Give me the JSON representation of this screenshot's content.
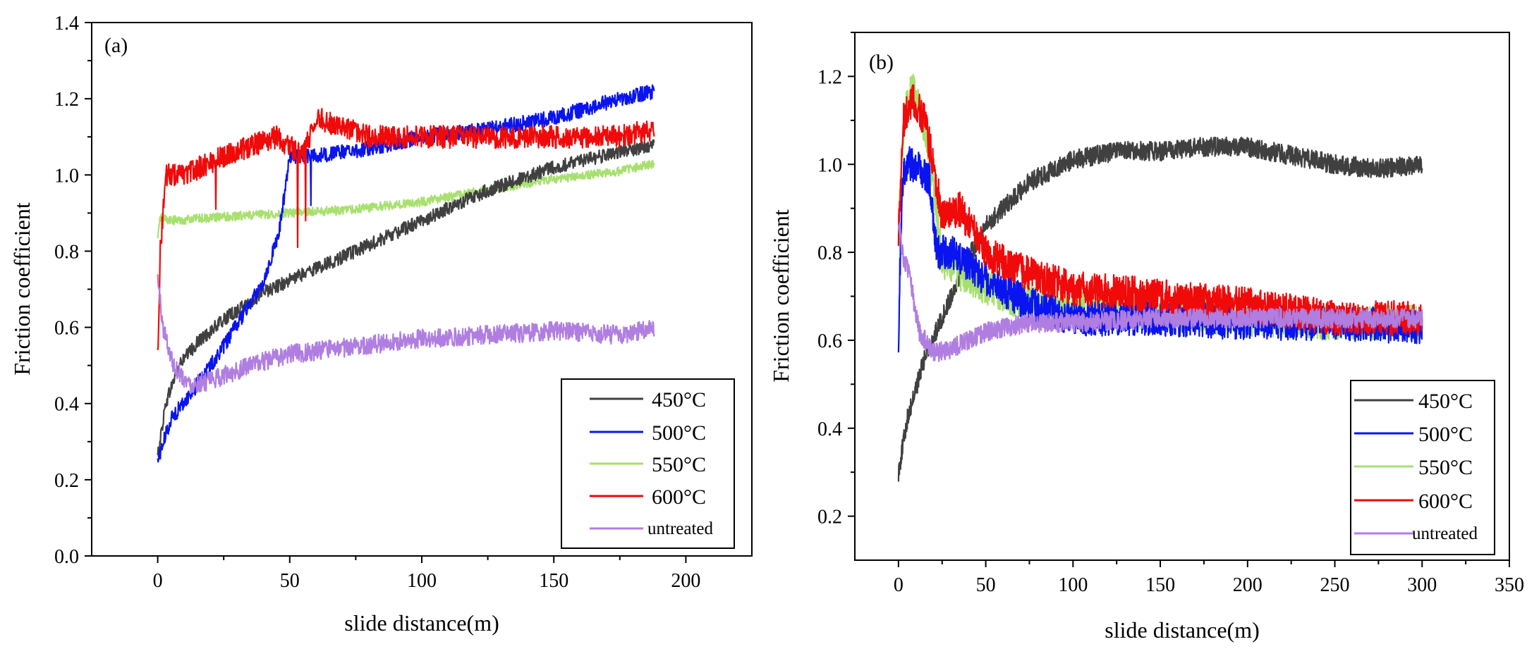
{
  "colors": {
    "450": "#404040",
    "500": "#0a14f0",
    "550": "#a8e070",
    "600": "#f00a0a",
    "untreated": "#b07ee0"
  },
  "chart_data": [
    {
      "type": "line",
      "panel_label": "(a)",
      "xlabel": "slide distance(m)",
      "ylabel": "Friction coefficient",
      "xlim": [
        -25,
        225
      ],
      "ylim": [
        0,
        1.4
      ],
      "xticks": [
        0,
        50,
        100,
        150,
        200
      ],
      "xtick_labels": [
        "0",
        "50",
        "100",
        "150",
        "200"
      ],
      "yticks": [
        0,
        0.2,
        0.4,
        0.6,
        0.8,
        1.0,
        1.2,
        1.4
      ],
      "ytick_labels": [
        "0.0",
        "0.2",
        "0.4",
        "0.6",
        "0.8",
        "1.0",
        "1.2",
        "1.4"
      ],
      "legend_position": "bottom-right",
      "series": [
        {
          "name": "450°C",
          "color_key": "450",
          "noise": 0.018,
          "x": [
            0,
            3,
            8,
            15,
            25,
            40,
            55,
            75,
            100,
            125,
            150,
            175,
            188
          ],
          "values": [
            0.26,
            0.4,
            0.5,
            0.56,
            0.62,
            0.69,
            0.74,
            0.8,
            0.88,
            0.96,
            1.02,
            1.06,
            1.08
          ]
        },
        {
          "name": "500°C",
          "color_key": "500",
          "noise": 0.02,
          "x": [
            0,
            5,
            12,
            25,
            40,
            46,
            48,
            50,
            60,
            80,
            100,
            125,
            150,
            175,
            188
          ],
          "values": [
            0.25,
            0.36,
            0.42,
            0.55,
            0.72,
            0.85,
            0.95,
            1.05,
            1.05,
            1.07,
            1.1,
            1.12,
            1.15,
            1.2,
            1.22
          ],
          "drops": [
            {
              "x": 58,
              "value": 0.92
            },
            {
              "x": 53,
              "value": 1.0
            }
          ]
        },
        {
          "name": "550°C",
          "color_key": "550",
          "noise": 0.012,
          "x": [
            0,
            1,
            5,
            25,
            50,
            75,
            100,
            125,
            150,
            175,
            188
          ],
          "values": [
            0.83,
            0.89,
            0.88,
            0.89,
            0.9,
            0.91,
            0.93,
            0.96,
            0.99,
            1.01,
            1.03
          ]
        },
        {
          "name": "600°C",
          "color_key": "600",
          "noise": 0.03,
          "x": [
            0,
            1,
            3,
            10,
            25,
            45,
            55,
            60,
            80,
            100,
            125,
            150,
            175,
            188
          ],
          "values": [
            0.53,
            0.8,
            1.0,
            1.0,
            1.05,
            1.1,
            1.05,
            1.15,
            1.1,
            1.1,
            1.1,
            1.1,
            1.1,
            1.12
          ],
          "drops": [
            {
              "x": 22,
              "value": 0.91
            },
            {
              "x": 53,
              "value": 0.81
            },
            {
              "x": 56,
              "value": 0.88
            }
          ]
        },
        {
          "name": "untreated",
          "color_key": "untreated",
          "noise": 0.025,
          "x": [
            0,
            2,
            6,
            12,
            20,
            35,
            50,
            75,
            100,
            125,
            150,
            175,
            188
          ],
          "values": [
            0.73,
            0.6,
            0.5,
            0.45,
            0.46,
            0.5,
            0.53,
            0.55,
            0.57,
            0.58,
            0.59,
            0.58,
            0.6
          ]
        }
      ]
    },
    {
      "type": "line",
      "panel_label": "(b)",
      "xlabel": "slide distance(m)",
      "ylabel": "Friction coefficient",
      "xlim": [
        -25,
        350
      ],
      "ylim": [
        0.1,
        1.3
      ],
      "xticks": [
        0,
        50,
        100,
        150,
        200,
        250,
        300,
        350
      ],
      "xtick_labels": [
        "0",
        "50",
        "100",
        "150",
        "200",
        "250",
        "300",
        "350"
      ],
      "yticks": [
        0.2,
        0.4,
        0.6,
        0.8,
        1.0,
        1.2
      ],
      "ytick_labels": [
        "0.2",
        "0.4",
        "0.6",
        "0.8",
        "1.0",
        "1.2"
      ],
      "legend_position": "bottom-right",
      "series": [
        {
          "name": "450°C",
          "color_key": "450",
          "noise": 0.022,
          "x": [
            0,
            5,
            15,
            25,
            35,
            50,
            75,
            100,
            125,
            150,
            175,
            200,
            225,
            250,
            275,
            300
          ],
          "values": [
            0.3,
            0.42,
            0.56,
            0.65,
            0.75,
            0.86,
            0.96,
            1.01,
            1.03,
            1.03,
            1.04,
            1.04,
            1.02,
            1.0,
            0.99,
            1.0
          ]
        },
        {
          "name": "500°C",
          "color_key": "500",
          "noise": 0.04,
          "x": [
            0,
            2,
            4,
            10,
            18,
            22,
            30,
            50,
            75,
            100,
            150,
            200,
            250,
            300
          ],
          "values": [
            0.61,
            0.95,
            1.0,
            1.0,
            0.96,
            0.8,
            0.8,
            0.74,
            0.68,
            0.65,
            0.65,
            0.64,
            0.64,
            0.63
          ]
        },
        {
          "name": "550°C",
          "color_key": "550",
          "noise": 0.04,
          "x": [
            0,
            3,
            8,
            15,
            20,
            25,
            40,
            60,
            100,
            150,
            200,
            250,
            300
          ],
          "values": [
            0.85,
            1.1,
            1.18,
            1.08,
            0.95,
            0.78,
            0.74,
            0.7,
            0.67,
            0.66,
            0.65,
            0.64,
            0.64
          ]
        },
        {
          "name": "600°C",
          "color_key": "600",
          "noise": 0.04,
          "x": [
            0,
            3,
            8,
            15,
            20,
            25,
            35,
            50,
            75,
            100,
            150,
            200,
            250,
            300
          ],
          "values": [
            0.85,
            1.1,
            1.15,
            1.1,
            1.0,
            0.88,
            0.9,
            0.8,
            0.75,
            0.72,
            0.7,
            0.68,
            0.65,
            0.65
          ]
        },
        {
          "name": "untreated",
          "color_key": "untreated",
          "noise": 0.022,
          "x": [
            0,
            2,
            6,
            12,
            20,
            30,
            50,
            75,
            100,
            150,
            200,
            250,
            300
          ],
          "values": [
            0.88,
            0.8,
            0.75,
            0.62,
            0.57,
            0.58,
            0.62,
            0.64,
            0.64,
            0.65,
            0.65,
            0.65,
            0.65
          ]
        }
      ]
    }
  ]
}
